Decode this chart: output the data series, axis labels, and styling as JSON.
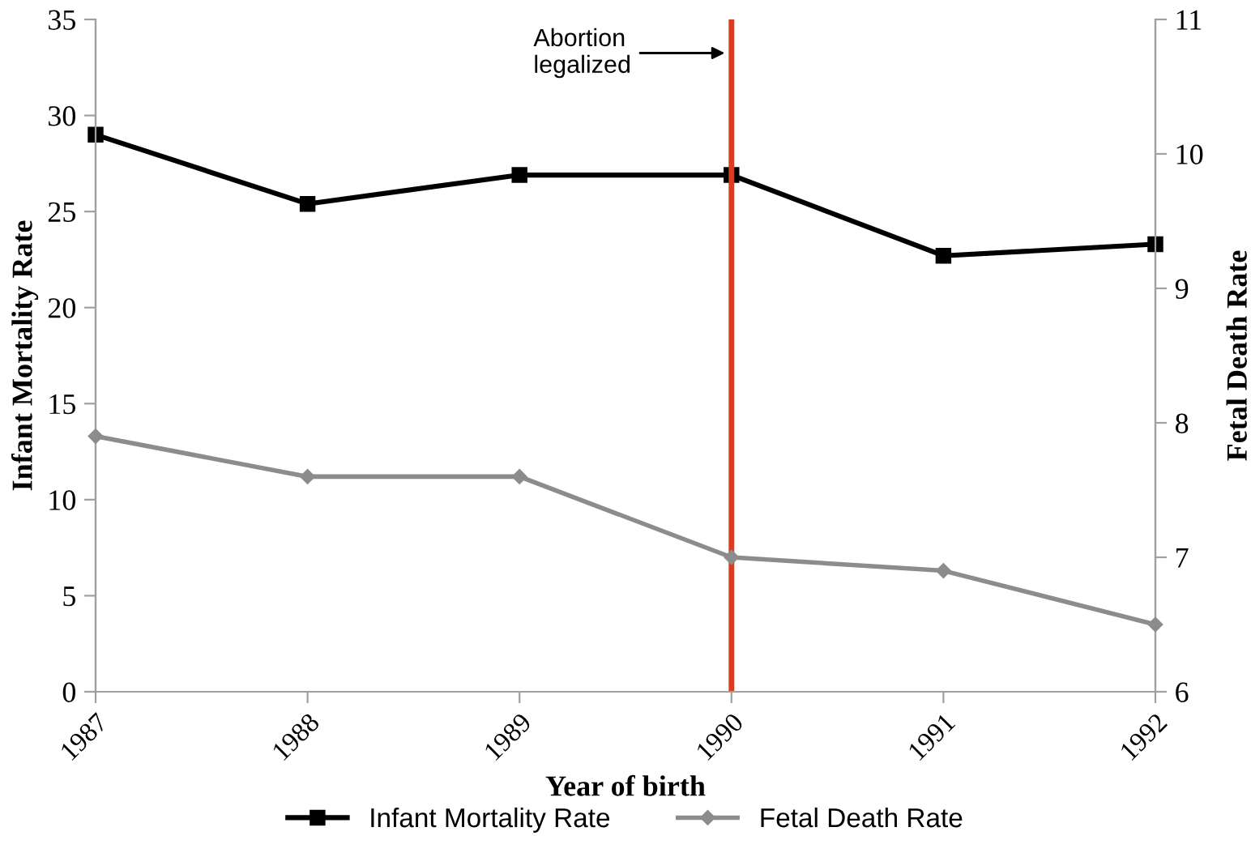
{
  "chart_data": {
    "type": "line",
    "xlabel": "Year of birth",
    "ylabel": "Infant Mortality Rate",
    "y2label": "Fetal Death Rate",
    "x": [
      1987,
      1988,
      1989,
      1990,
      1991,
      1992
    ],
    "series": [
      {
        "name": "Infant Mortality Rate",
        "color": "#000000",
        "marker": "square",
        "values": [
          29.0,
          25.4,
          26.9,
          26.9,
          22.7,
          23.3
        ]
      },
      {
        "name": "Fetal Death Rate",
        "color": "#8c8c8c",
        "marker": "diamond",
        "axis": "y2",
        "values": [
          7.9,
          7.6,
          7.6,
          7.0,
          6.9,
          6.5
        ]
      }
    ],
    "xlim": [
      1987,
      1992
    ],
    "xticks": [
      1987,
      1988,
      1989,
      1990,
      1991,
      1992
    ],
    "ylim": [
      0,
      35
    ],
    "yticks": [
      0,
      5,
      10,
      15,
      20,
      25,
      30,
      35
    ],
    "y2lim": [
      6,
      11
    ],
    "y2ticks": [
      6,
      7,
      8,
      9,
      10,
      11
    ],
    "ref_lines": [
      {
        "axis": "x",
        "value": 1990,
        "label": "Abortion\nlegalized",
        "color": "#e03a1e"
      }
    ],
    "grid": false,
    "legend": "bottom",
    "line_style": "solid"
  }
}
